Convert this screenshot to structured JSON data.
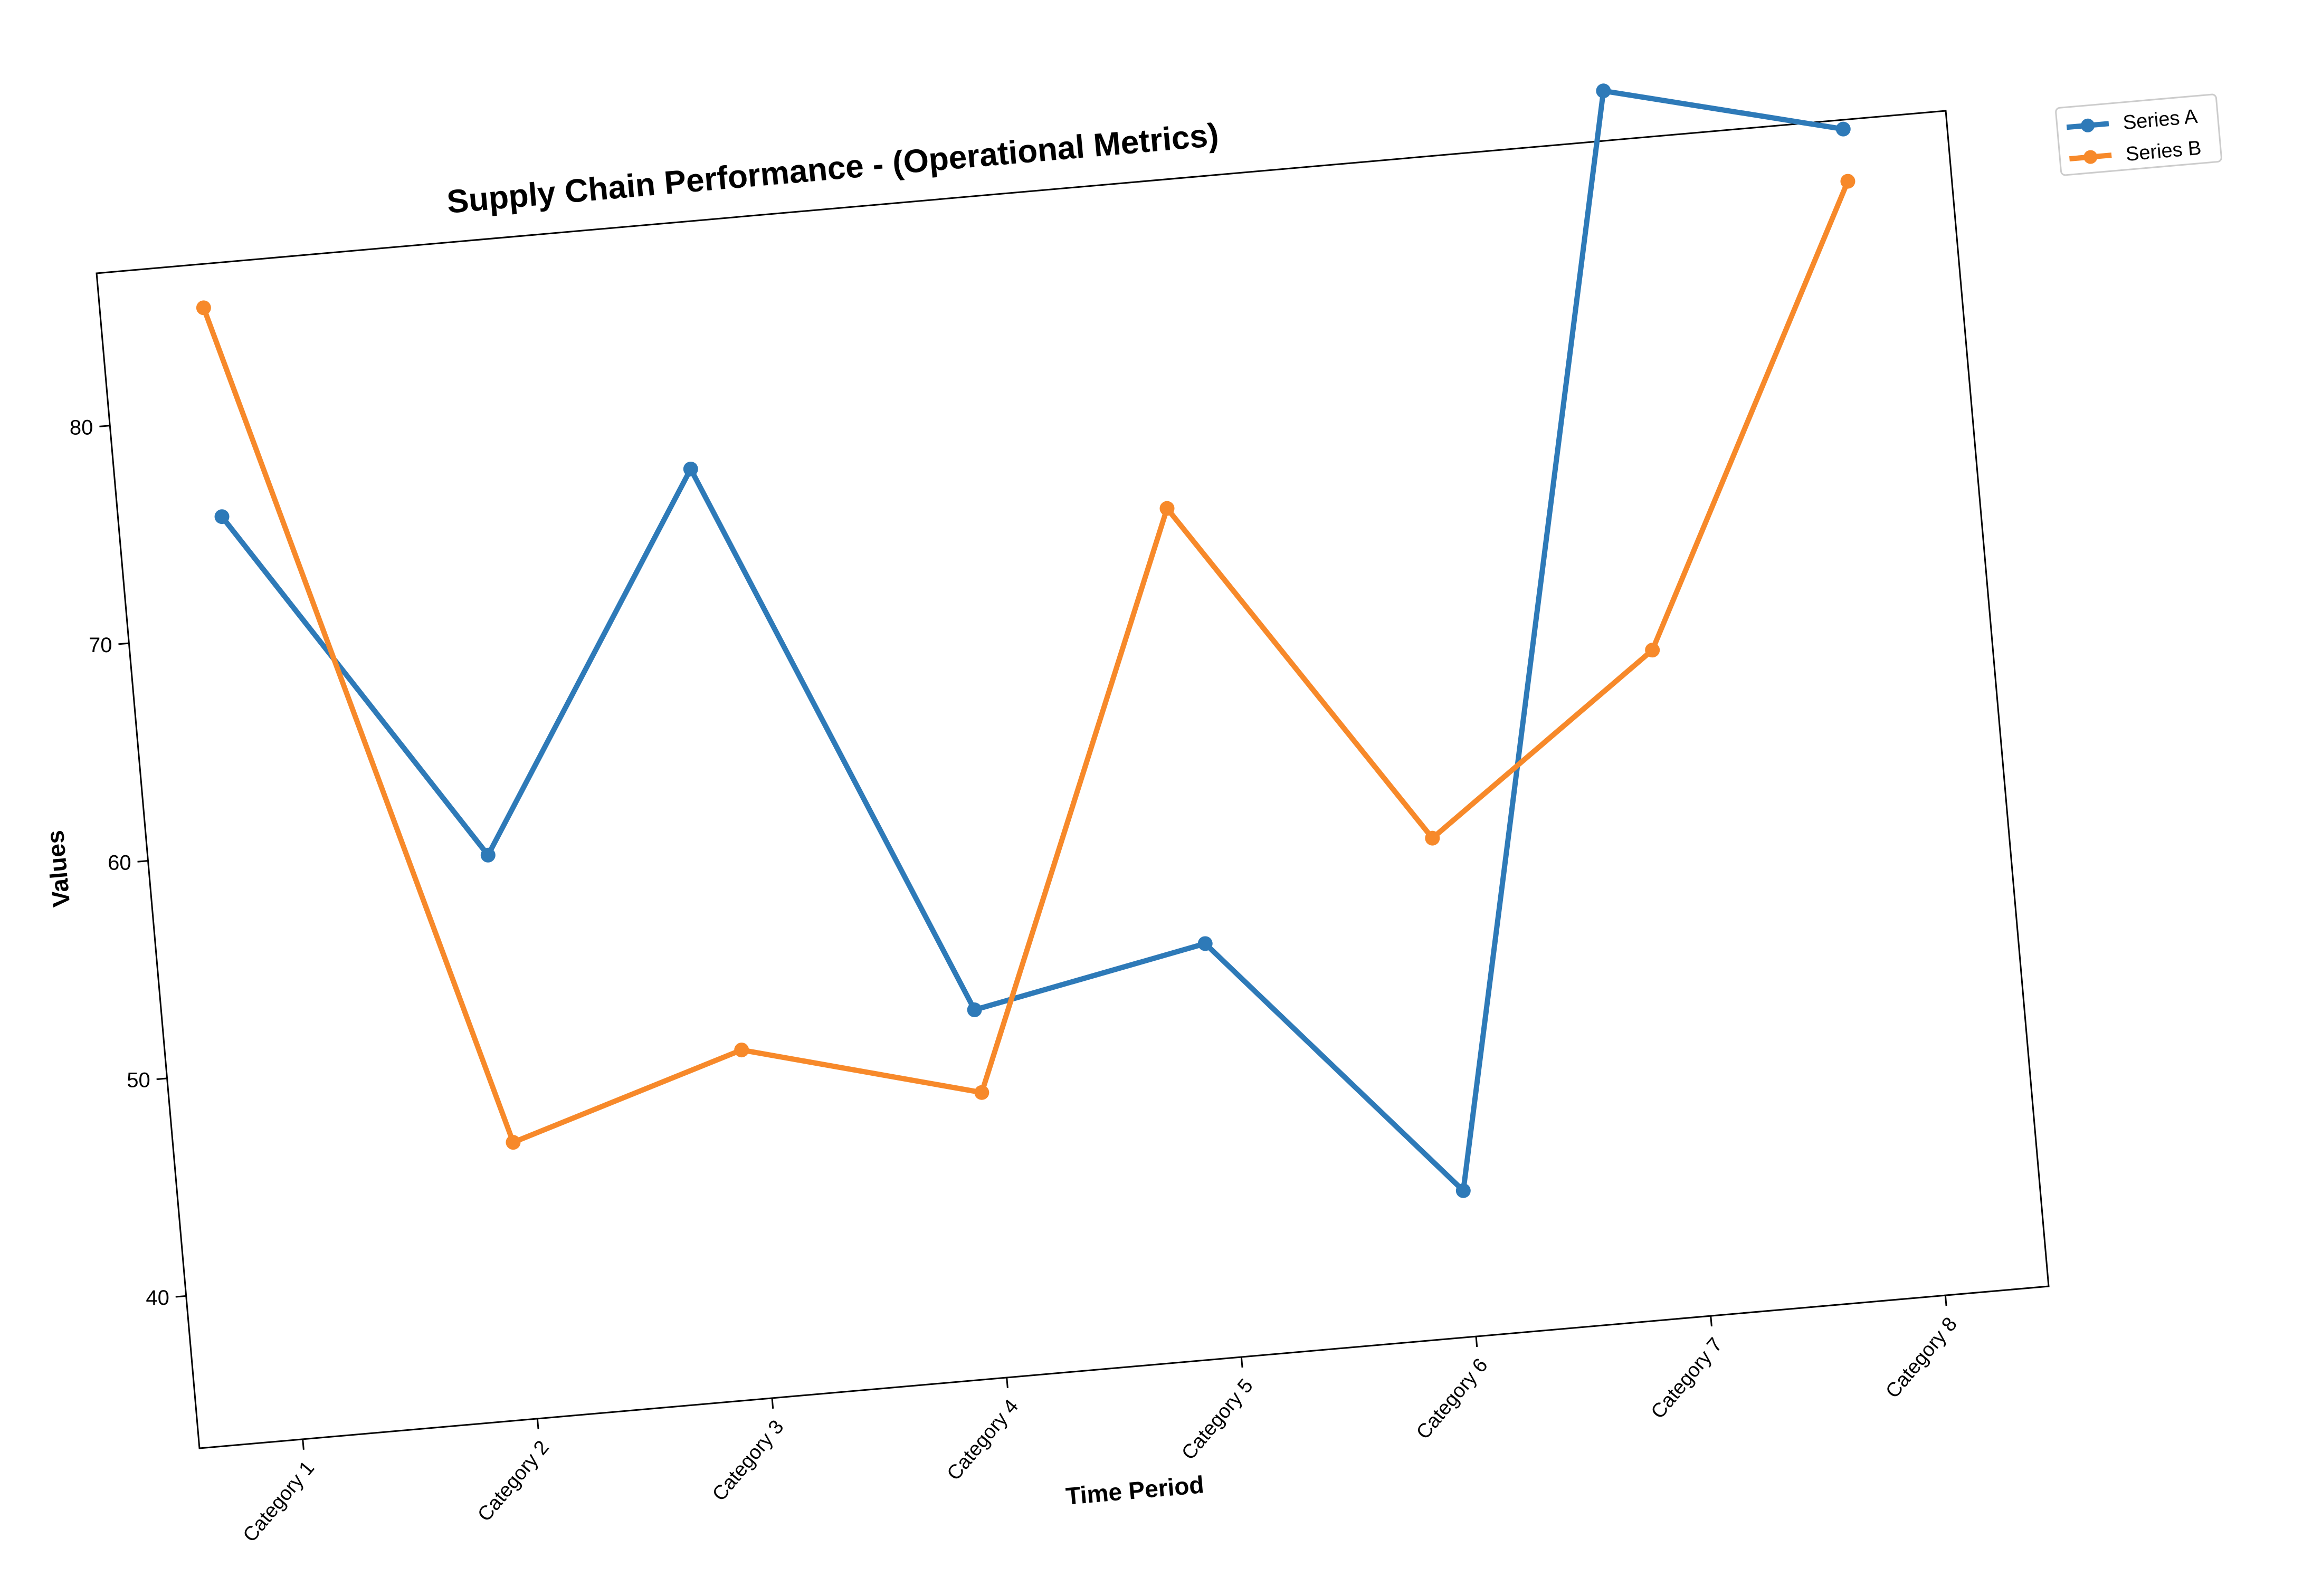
{
  "chart_data": {
    "type": "line",
    "title": "Supply Chain Performance - (Operational Metrics)",
    "xlabel": "Time Period",
    "ylabel": "Values",
    "categories": [
      "Category 1",
      "Category 2",
      "Category 3",
      "Category 4",
      "Category 5",
      "Category 6",
      "Category 7",
      "Category 8"
    ],
    "yticks": [
      40,
      50,
      60,
      70,
      80
    ],
    "ylim": [
      33,
      87
    ],
    "grid": false,
    "legend_position": "top-right",
    "series": [
      {
        "name": "Series A",
        "color": "#2e7ab8",
        "values": [
          75.4,
          58.9,
          75.7,
          49.9,
          52.0,
          39.7,
          89.3,
          86.6
        ]
      },
      {
        "name": "Series B",
        "color": "#f7892a",
        "values": [
          85.0,
          45.7,
          49.0,
          46.1,
          72.0,
          55.9,
          63.6,
          84.2
        ]
      }
    ]
  }
}
